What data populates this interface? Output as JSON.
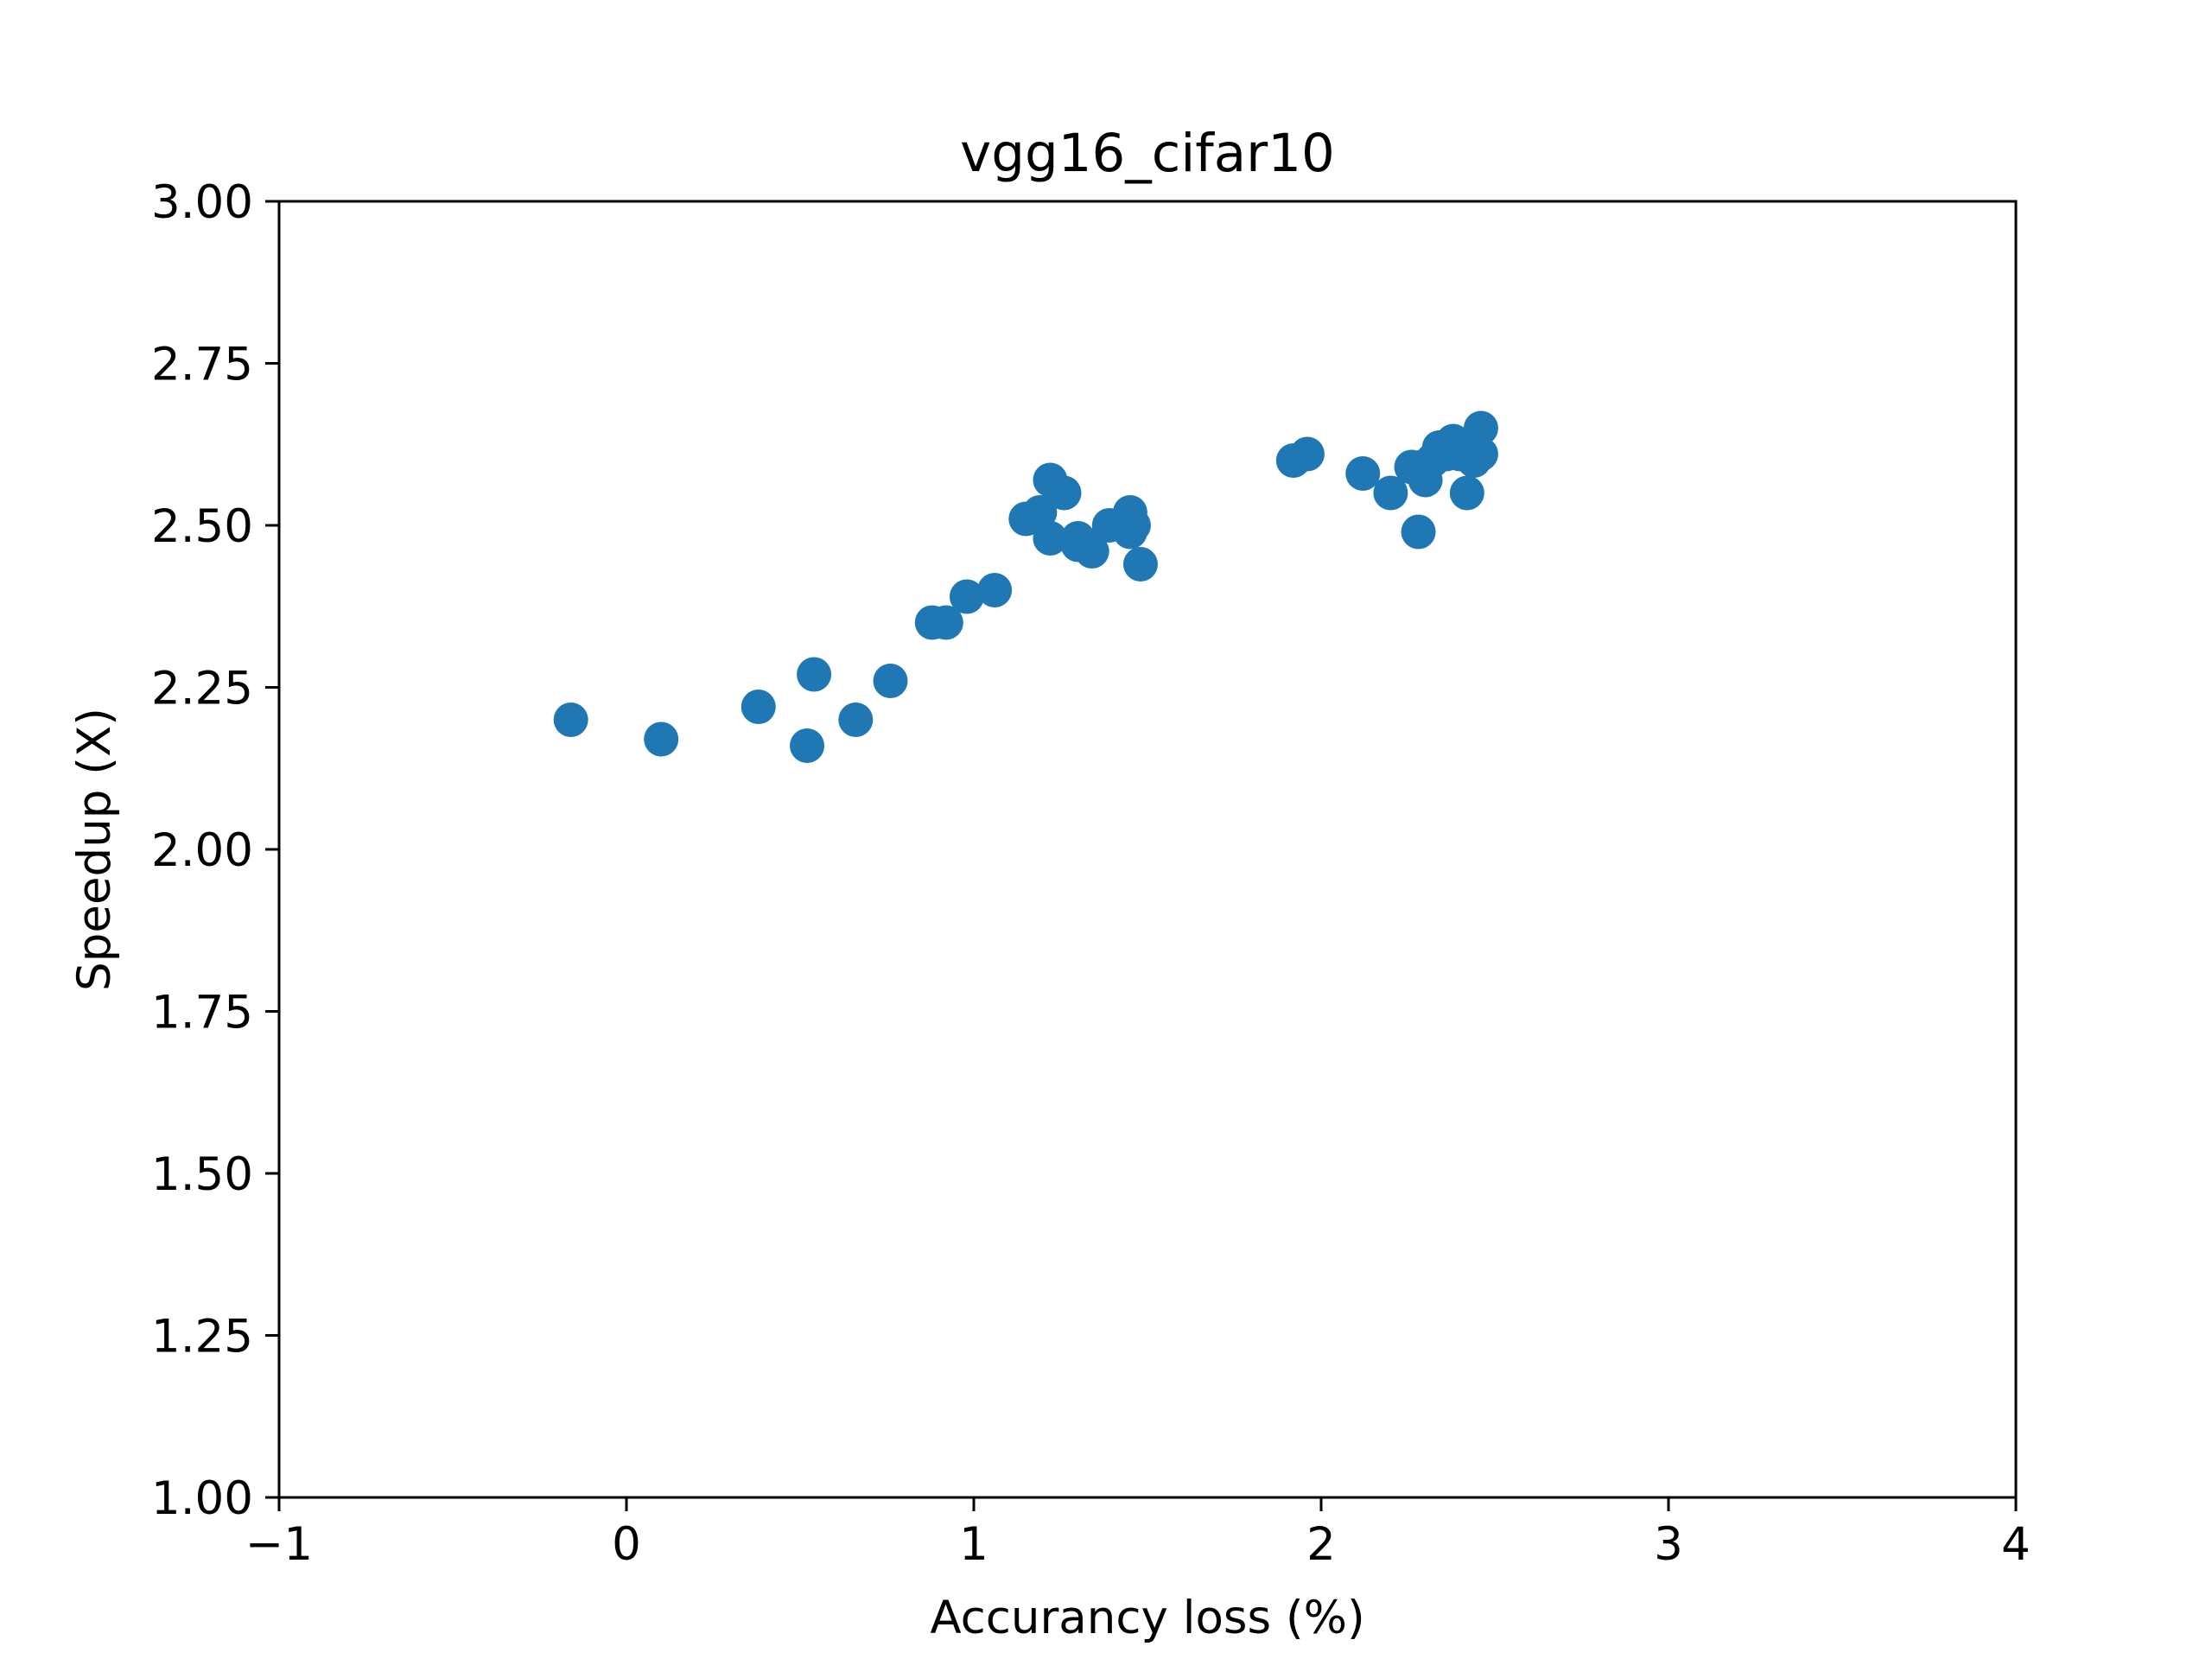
{
  "chart_data": {
    "type": "scatter",
    "title": "vgg16_cifar10",
    "xlabel": "Accurancy loss (%)",
    "ylabel": "Speedup (X)",
    "xlim": [
      -1,
      4
    ],
    "ylim": [
      1.0,
      3.0
    ],
    "xticks": [
      -1,
      0,
      1,
      2,
      3,
      4
    ],
    "xtick_labels": [
      "−1",
      "0",
      "1",
      "2",
      "3",
      "4"
    ],
    "yticks": [
      1.0,
      1.25,
      1.5,
      1.75,
      2.0,
      2.25,
      2.5,
      2.75,
      3.0
    ],
    "ytick_labels": [
      "1.00",
      "1.25",
      "1.50",
      "1.75",
      "2.00",
      "2.25",
      "2.50",
      "2.75",
      "3.00"
    ],
    "grid": false,
    "color": "#1f77b4",
    "series": [
      {
        "x": [
          -0.16,
          0.1,
          0.38,
          0.52,
          0.54,
          0.66,
          0.76,
          0.88,
          0.92,
          0.98,
          1.06,
          1.15,
          1.19,
          1.22,
          1.22,
          1.26,
          1.3,
          1.3,
          1.34,
          1.39,
          1.45,
          1.45,
          1.46,
          1.48,
          1.92,
          1.96,
          2.12,
          2.2,
          2.26,
          2.28,
          2.29,
          2.3,
          2.32,
          2.34,
          2.36,
          2.38,
          2.4,
          2.42,
          2.43,
          2.44,
          2.46,
          2.46
        ],
        "y": [
          2.2,
          2.17,
          2.22,
          2.16,
          2.27,
          2.2,
          2.26,
          2.35,
          2.35,
          2.39,
          2.4,
          2.51,
          2.52,
          2.48,
          2.57,
          2.55,
          2.48,
          2.47,
          2.46,
          2.5,
          2.52,
          2.49,
          2.5,
          2.44,
          2.6,
          2.61,
          2.58,
          2.55,
          2.59,
          2.49,
          2.59,
          2.57,
          2.6,
          2.62,
          2.61,
          2.63,
          2.61,
          2.55,
          2.62,
          2.6,
          2.65,
          2.61
        ]
      }
    ]
  }
}
